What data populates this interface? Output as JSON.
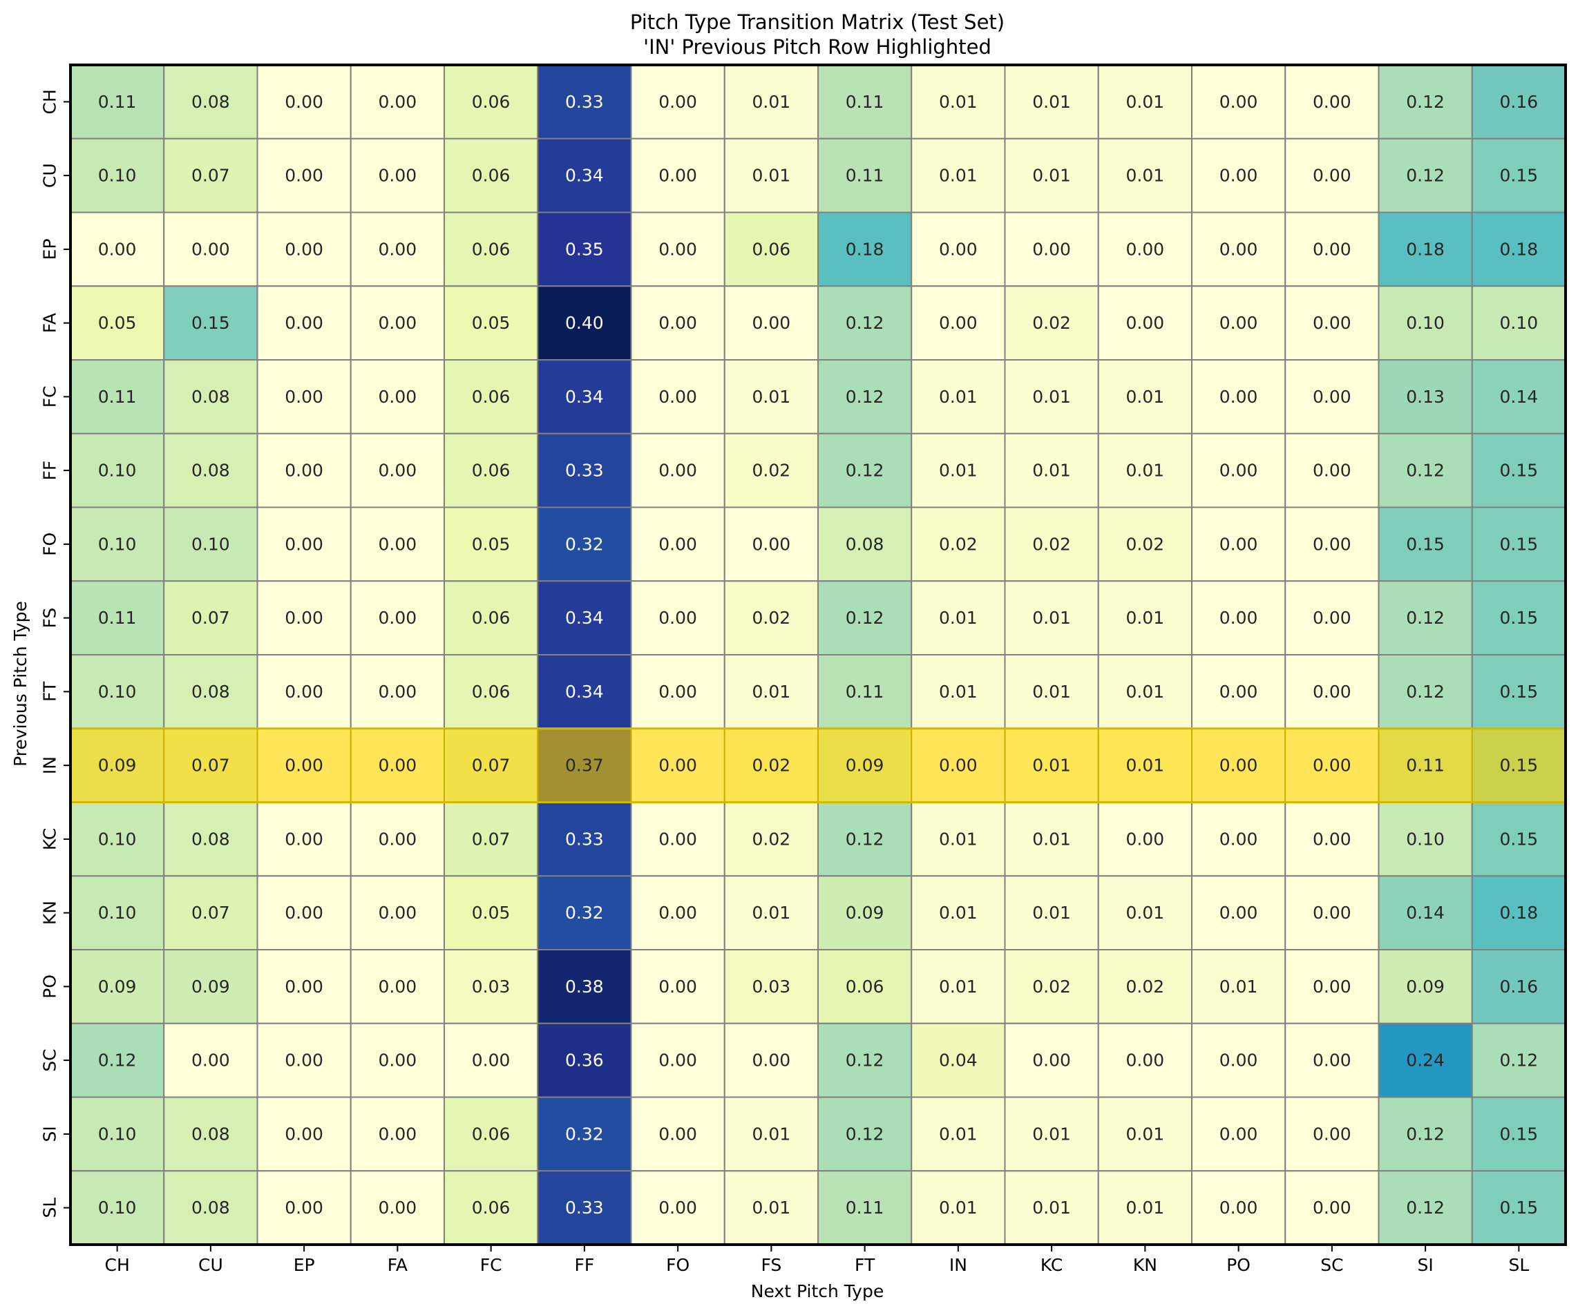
{
  "chart_data": {
    "type": "heatmap",
    "title": "Pitch Type Transition Matrix (Test Set)",
    "subtitle": "'IN' Previous Pitch Row Highlighted",
    "xlabel": "Next Pitch Type",
    "ylabel": "Previous Pitch Type",
    "x_categories": [
      "CH",
      "CU",
      "EP",
      "FA",
      "FC",
      "FF",
      "FO",
      "FS",
      "FT",
      "IN",
      "KC",
      "KN",
      "PO",
      "SC",
      "SI",
      "SL"
    ],
    "y_categories": [
      "CH",
      "CU",
      "EP",
      "FA",
      "FC",
      "FF",
      "FO",
      "FS",
      "FT",
      "IN",
      "KC",
      "KN",
      "PO",
      "SC",
      "SI",
      "SL"
    ],
    "highlighted_row": "IN",
    "colormap": "YlGnBu",
    "value_range": [
      0,
      0.4
    ],
    "highlight_color": "#ffd400",
    "cell_border_color": "#808080",
    "frame_color": "#000000",
    "values": [
      [
        0.11,
        0.08,
        0.0,
        0.0,
        0.06,
        0.33,
        0.0,
        0.01,
        0.11,
        0.01,
        0.01,
        0.01,
        0.0,
        0.0,
        0.12,
        0.16
      ],
      [
        0.1,
        0.07,
        0.0,
        0.0,
        0.06,
        0.34,
        0.0,
        0.01,
        0.11,
        0.01,
        0.01,
        0.01,
        0.0,
        0.0,
        0.12,
        0.15
      ],
      [
        0.0,
        0.0,
        0.0,
        0.0,
        0.06,
        0.35,
        0.0,
        0.06,
        0.18,
        0.0,
        0.0,
        0.0,
        0.0,
        0.0,
        0.18,
        0.18
      ],
      [
        0.05,
        0.15,
        0.0,
        0.0,
        0.05,
        0.4,
        0.0,
        0.0,
        0.12,
        0.0,
        0.02,
        0.0,
        0.0,
        0.0,
        0.1,
        0.1
      ],
      [
        0.11,
        0.08,
        0.0,
        0.0,
        0.06,
        0.34,
        0.0,
        0.01,
        0.12,
        0.01,
        0.01,
        0.01,
        0.0,
        0.0,
        0.13,
        0.14
      ],
      [
        0.1,
        0.08,
        0.0,
        0.0,
        0.06,
        0.33,
        0.0,
        0.02,
        0.12,
        0.01,
        0.01,
        0.01,
        0.0,
        0.0,
        0.12,
        0.15
      ],
      [
        0.1,
        0.1,
        0.0,
        0.0,
        0.05,
        0.32,
        0.0,
        0.0,
        0.08,
        0.02,
        0.02,
        0.02,
        0.0,
        0.0,
        0.15,
        0.15
      ],
      [
        0.11,
        0.07,
        0.0,
        0.0,
        0.06,
        0.34,
        0.0,
        0.02,
        0.12,
        0.01,
        0.01,
        0.01,
        0.0,
        0.0,
        0.12,
        0.15
      ],
      [
        0.1,
        0.08,
        0.0,
        0.0,
        0.06,
        0.34,
        0.0,
        0.01,
        0.11,
        0.01,
        0.01,
        0.01,
        0.0,
        0.0,
        0.12,
        0.15
      ],
      [
        0.09,
        0.07,
        0.0,
        0.0,
        0.07,
        0.37,
        0.0,
        0.02,
        0.09,
        0.0,
        0.01,
        0.01,
        0.0,
        0.0,
        0.11,
        0.15
      ],
      [
        0.1,
        0.08,
        0.0,
        0.0,
        0.07,
        0.33,
        0.0,
        0.02,
        0.12,
        0.01,
        0.01,
        0.0,
        0.0,
        0.0,
        0.1,
        0.15
      ],
      [
        0.1,
        0.07,
        0.0,
        0.0,
        0.05,
        0.32,
        0.0,
        0.01,
        0.09,
        0.01,
        0.01,
        0.01,
        0.0,
        0.0,
        0.14,
        0.18
      ],
      [
        0.09,
        0.09,
        0.0,
        0.0,
        0.03,
        0.38,
        0.0,
        0.03,
        0.06,
        0.01,
        0.02,
        0.02,
        0.01,
        0.0,
        0.09,
        0.16
      ],
      [
        0.12,
        0.0,
        0.0,
        0.0,
        0.0,
        0.36,
        0.0,
        0.0,
        0.12,
        0.04,
        0.0,
        0.0,
        0.0,
        0.0,
        0.24,
        0.12
      ],
      [
        0.1,
        0.08,
        0.0,
        0.0,
        0.06,
        0.32,
        0.0,
        0.01,
        0.12,
        0.01,
        0.01,
        0.01,
        0.0,
        0.0,
        0.12,
        0.15
      ],
      [
        0.1,
        0.08,
        0.0,
        0.0,
        0.06,
        0.33,
        0.0,
        0.01,
        0.11,
        0.01,
        0.01,
        0.01,
        0.0,
        0.0,
        0.12,
        0.15
      ]
    ]
  }
}
